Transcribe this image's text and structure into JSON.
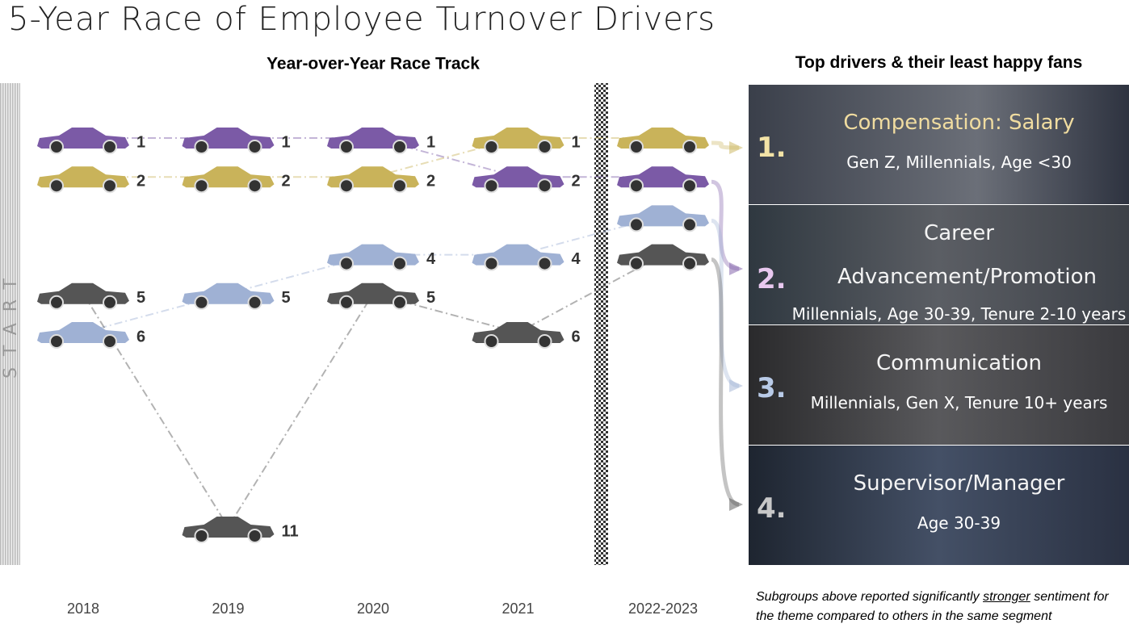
{
  "title": "5-Year Race of Employee Turnover Drivers",
  "start_label": "START",
  "chart_data": {
    "type": "bump",
    "title": "Year-over-Year Race Track",
    "categories": [
      "2018",
      "2019",
      "2020",
      "2021",
      "2022-2023"
    ],
    "series": [
      {
        "color": "#7b5aa6",
        "values": [
          1,
          1,
          1,
          2,
          2
        ]
      },
      {
        "color": "#c9b35a",
        "values": [
          2,
          2,
          2,
          1,
          1
        ]
      },
      {
        "color": "#9fb1d4",
        "values": [
          6,
          5,
          4,
          4,
          3
        ]
      },
      {
        "color": "#555555",
        "values": [
          5,
          11,
          5,
          6,
          4
        ]
      }
    ],
    "ylim": [
      1,
      11
    ],
    "y_reversed": true
  },
  "panel": {
    "title": "Top drivers & their least happy fans",
    "items": [
      {
        "rank": "1.",
        "theme": "Compensation: Salary",
        "groups": "Gen Z, Millennials, Age <30"
      },
      {
        "rank": "2.",
        "theme": "Career Advancement/Promotion",
        "groups": "Millennials, Age 30-39, Tenure 2-10 years"
      },
      {
        "rank": "3.",
        "theme": "Communication",
        "groups": "Millennials, Gen X, Tenure 10+ years"
      },
      {
        "rank": "4.",
        "theme": "Supervisor/Manager",
        "groups": "Age 30-39"
      }
    ],
    "footnote": [
      "Subgroups above reported significantly ",
      "stronger",
      " sentiment for the theme compared to others in the same segment"
    ]
  }
}
